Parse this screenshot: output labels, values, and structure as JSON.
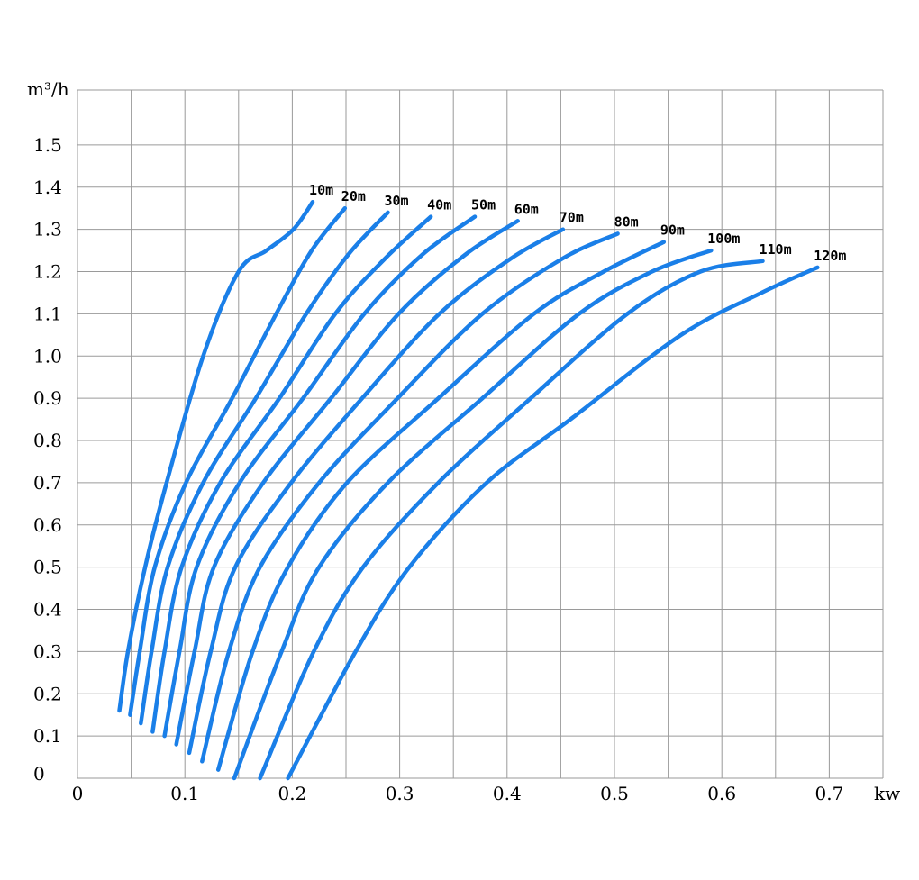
{
  "chart_data": {
    "type": "line",
    "xlabel": "kw",
    "ylabel": "m³/h",
    "xlim": [
      0,
      0.75
    ],
    "ylim": [
      0,
      1.63
    ],
    "x_ticks": [
      "0",
      "0.1",
      "0.2",
      "0.3",
      "0.4",
      "0.5",
      "0.6",
      "0.7"
    ],
    "x_tick_values": [
      0,
      0.1,
      0.2,
      0.3,
      0.4,
      0.5,
      0.6,
      0.7
    ],
    "y_ticks": [
      "0",
      "0.1",
      "0.2",
      "0.3",
      "0.4",
      "0.5",
      "0.6",
      "0.7",
      "0.8",
      "0.9",
      "1.0",
      "1.1",
      "1.2",
      "1.3",
      "1.4",
      "1.5"
    ],
    "y_tick_values": [
      0,
      0.1,
      0.2,
      0.3,
      0.4,
      0.5,
      0.6,
      0.7,
      0.8,
      0.9,
      1.0,
      1.1,
      1.2,
      1.3,
      1.4,
      1.5
    ],
    "grid": true,
    "line_color": "#1a7fe8",
    "series": [
      {
        "name": "10m",
        "x": [
          0.039,
          0.047,
          0.063,
          0.083,
          0.117,
          0.15,
          0.176,
          0.201,
          0.219
        ],
        "y": [
          0.16,
          0.3,
          0.5,
          0.7,
          1.0,
          1.2,
          1.25,
          1.3,
          1.365
        ]
      },
      {
        "name": "20m",
        "x": [
          0.049,
          0.058,
          0.072,
          0.101,
          0.144,
          0.185,
          0.218,
          0.249
        ],
        "y": [
          0.15,
          0.3,
          0.5,
          0.7,
          0.9,
          1.1,
          1.25,
          1.35
        ]
      },
      {
        "name": "30m",
        "x": [
          0.059,
          0.069,
          0.084,
          0.117,
          0.166,
          0.213,
          0.252,
          0.289
        ],
        "y": [
          0.13,
          0.3,
          0.5,
          0.7,
          0.9,
          1.1,
          1.24,
          1.34
        ]
      },
      {
        "name": "40m",
        "x": [
          0.07,
          0.081,
          0.097,
          0.133,
          0.188,
          0.24,
          0.286,
          0.329
        ],
        "y": [
          0.11,
          0.3,
          0.5,
          0.7,
          0.9,
          1.1,
          1.23,
          1.33
        ]
      },
      {
        "name": "50m",
        "x": [
          0.081,
          0.095,
          0.111,
          0.151,
          0.21,
          0.267,
          0.321,
          0.37
        ],
        "y": [
          0.1,
          0.3,
          0.5,
          0.7,
          0.9,
          1.1,
          1.24,
          1.33
        ]
      },
      {
        "name": "60m",
        "x": [
          0.092,
          0.109,
          0.127,
          0.173,
          0.236,
          0.299,
          0.361,
          0.41
        ],
        "y": [
          0.08,
          0.3,
          0.5,
          0.7,
          0.9,
          1.1,
          1.24,
          1.32
        ]
      },
      {
        "name": "70m",
        "x": [
          0.104,
          0.124,
          0.147,
          0.199,
          0.265,
          0.337,
          0.403,
          0.452
        ],
        "y": [
          0.06,
          0.3,
          0.5,
          0.7,
          0.9,
          1.1,
          1.23,
          1.3
        ]
      },
      {
        "name": "80m",
        "x": [
          0.116,
          0.141,
          0.17,
          0.225,
          0.298,
          0.377,
          0.451,
          0.503
        ],
        "y": [
          0.04,
          0.3,
          0.5,
          0.7,
          0.9,
          1.1,
          1.23,
          1.29
        ]
      },
      {
        "name": "90m",
        "x": [
          0.131,
          0.163,
          0.196,
          0.251,
          0.336,
          0.425,
          0.49,
          0.546
        ],
        "y": [
          0.02,
          0.3,
          0.5,
          0.7,
          0.9,
          1.1,
          1.2,
          1.27
        ]
      },
      {
        "name": "100m",
        "x": [
          0.146,
          0.19,
          0.225,
          0.289,
          0.377,
          0.467,
          0.535,
          0.59
        ],
        "y": [
          0,
          0.3,
          0.5,
          0.7,
          0.9,
          1.1,
          1.2,
          1.25
        ]
      },
      {
        "name": "110m",
        "x": [
          0.17,
          0.22,
          0.266,
          0.336,
          0.422,
          0.512,
          0.58,
          0.638
        ],
        "y": [
          0,
          0.3,
          0.5,
          0.7,
          0.9,
          1.1,
          1.2,
          1.225
        ]
      },
      {
        "name": "120m",
        "x": [
          0.196,
          0.259,
          0.309,
          0.381,
          0.459,
          0.562,
          0.637,
          0.689
        ],
        "y": [
          0,
          0.3,
          0.5,
          0.7,
          0.85,
          1.05,
          1.15,
          1.21
        ]
      }
    ]
  }
}
